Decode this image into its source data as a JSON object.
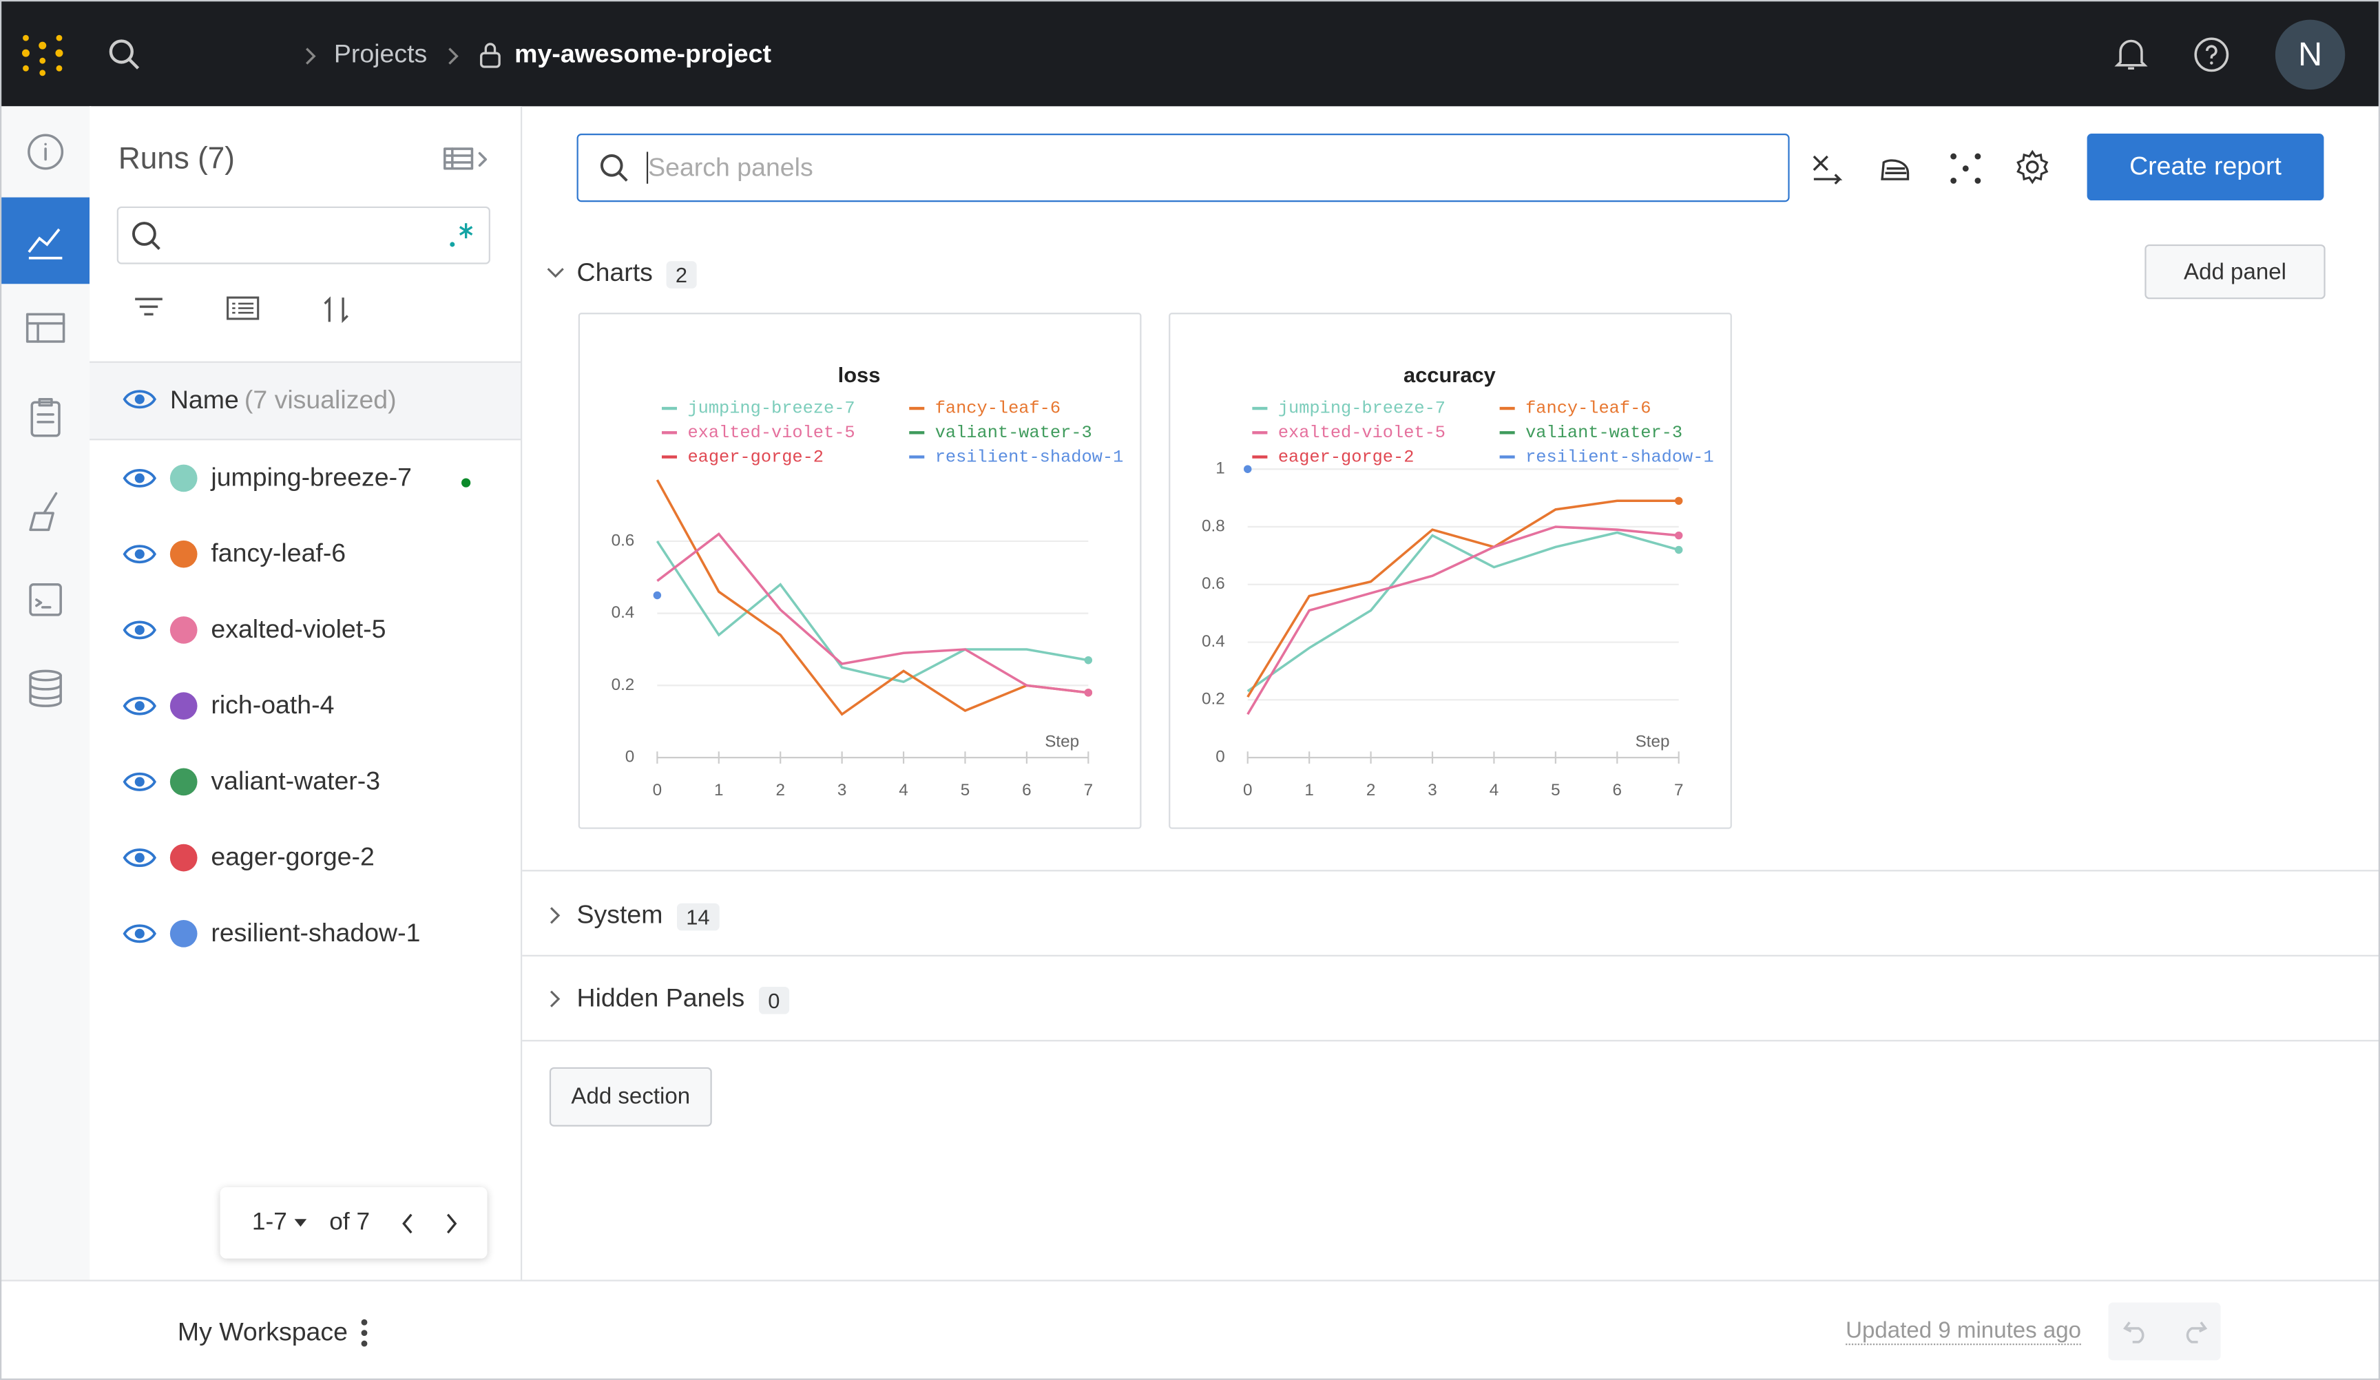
{
  "header": {
    "breadcrumb": [
      "Projects",
      "my-awesome-project"
    ],
    "avatar": "N"
  },
  "runs": {
    "title": "Runs (7)",
    "name_header": "Name",
    "visualized": "(7 visualized)",
    "items": [
      {
        "name": "jumping-breeze-7",
        "color": "#87d0c0"
      },
      {
        "name": "fancy-leaf-6",
        "color": "#e7762f"
      },
      {
        "name": "exalted-violet-5",
        "color": "#e7779f"
      },
      {
        "name": "rich-oath-4",
        "color": "#8b55c2"
      },
      {
        "name": "valiant-water-3",
        "color": "#3e9a5c"
      },
      {
        "name": "eager-gorge-2",
        "color": "#e04852"
      },
      {
        "name": "resilient-shadow-1",
        "color": "#5a8de0"
      }
    ],
    "pagination": {
      "range": "1-7",
      "of": "of 7"
    }
  },
  "toolbar": {
    "search_placeholder": "Search panels",
    "create_report": "Create report",
    "add_panel": "Add panel"
  },
  "sections": [
    {
      "title": "Charts",
      "count": 2
    },
    {
      "title": "System",
      "count": 14
    },
    {
      "title": "Hidden Panels",
      "count": 0
    }
  ],
  "add_section": "Add section",
  "chart_data": [
    {
      "type": "line",
      "title": "loss",
      "xlabel": "Step",
      "x": [
        0,
        1,
        2,
        3,
        4,
        5,
        6,
        7
      ],
      "xlim": [
        0,
        7
      ],
      "xticks": [
        0,
        1,
        2,
        3,
        4,
        5,
        6,
        7
      ],
      "ylim": [
        0,
        0.8
      ],
      "yticks": [
        0,
        0.2,
        0.4,
        0.6
      ],
      "grid": true,
      "series": [
        {
          "name": "jumping-breeze-7",
          "color": "#7ccdbb",
          "values": [
            0.6,
            0.34,
            0.48,
            0.25,
            0.21,
            0.3,
            0.3,
            0.27
          ]
        },
        {
          "name": "fancy-leaf-6",
          "color": "#e7762f",
          "values": [
            0.77,
            0.46,
            0.34,
            0.12,
            0.24,
            0.13,
            0.2,
            0.18
          ]
        },
        {
          "name": "exalted-violet-5",
          "color": "#e5709d",
          "values": [
            0.49,
            0.62,
            0.41,
            0.26,
            0.29,
            0.3,
            0.2,
            0.18
          ]
        },
        {
          "name": "valiant-water-3",
          "color": "#3f9b5c",
          "values": [
            null,
            null,
            null,
            null,
            null,
            null,
            null,
            null
          ]
        },
        {
          "name": "eager-gorge-2",
          "color": "#e04852",
          "values": [
            null,
            null,
            null,
            null,
            null,
            null,
            null,
            null
          ]
        },
        {
          "name": "resilient-shadow-1",
          "color": "#5a8de0",
          "values": [
            0.45,
            null,
            null,
            null,
            null,
            null,
            null,
            null
          ]
        }
      ]
    },
    {
      "type": "line",
      "title": "accuracy",
      "xlabel": "Step",
      "x": [
        0,
        1,
        2,
        3,
        4,
        5,
        6,
        7
      ],
      "xlim": [
        0,
        7
      ],
      "xticks": [
        0,
        1,
        2,
        3,
        4,
        5,
        6,
        7
      ],
      "ylim": [
        0,
        1
      ],
      "yticks": [
        0,
        0.2,
        0.4,
        0.6,
        0.8,
        1
      ],
      "grid": true,
      "series": [
        {
          "name": "jumping-breeze-7",
          "color": "#7ccdbb",
          "values": [
            0.23,
            0.38,
            0.51,
            0.77,
            0.66,
            0.73,
            0.78,
            0.72
          ]
        },
        {
          "name": "fancy-leaf-6",
          "color": "#e7762f",
          "values": [
            0.21,
            0.56,
            0.61,
            0.79,
            0.73,
            0.86,
            0.89,
            0.89
          ]
        },
        {
          "name": "exalted-violet-5",
          "color": "#e5709d",
          "values": [
            0.15,
            0.51,
            0.57,
            0.63,
            0.73,
            0.8,
            0.79,
            0.77
          ]
        },
        {
          "name": "valiant-water-3",
          "color": "#3f9b5c",
          "values": [
            null,
            null,
            null,
            null,
            null,
            null,
            null,
            null
          ]
        },
        {
          "name": "eager-gorge-2",
          "color": "#e04852",
          "values": [
            null,
            null,
            null,
            null,
            null,
            null,
            null,
            null
          ]
        },
        {
          "name": "resilient-shadow-1",
          "color": "#5a8de0",
          "values": [
            1,
            null,
            null,
            null,
            null,
            null,
            null,
            null
          ]
        }
      ]
    }
  ],
  "footer": {
    "workspace": "My Workspace",
    "updated": "Updated 9 minutes ago"
  }
}
